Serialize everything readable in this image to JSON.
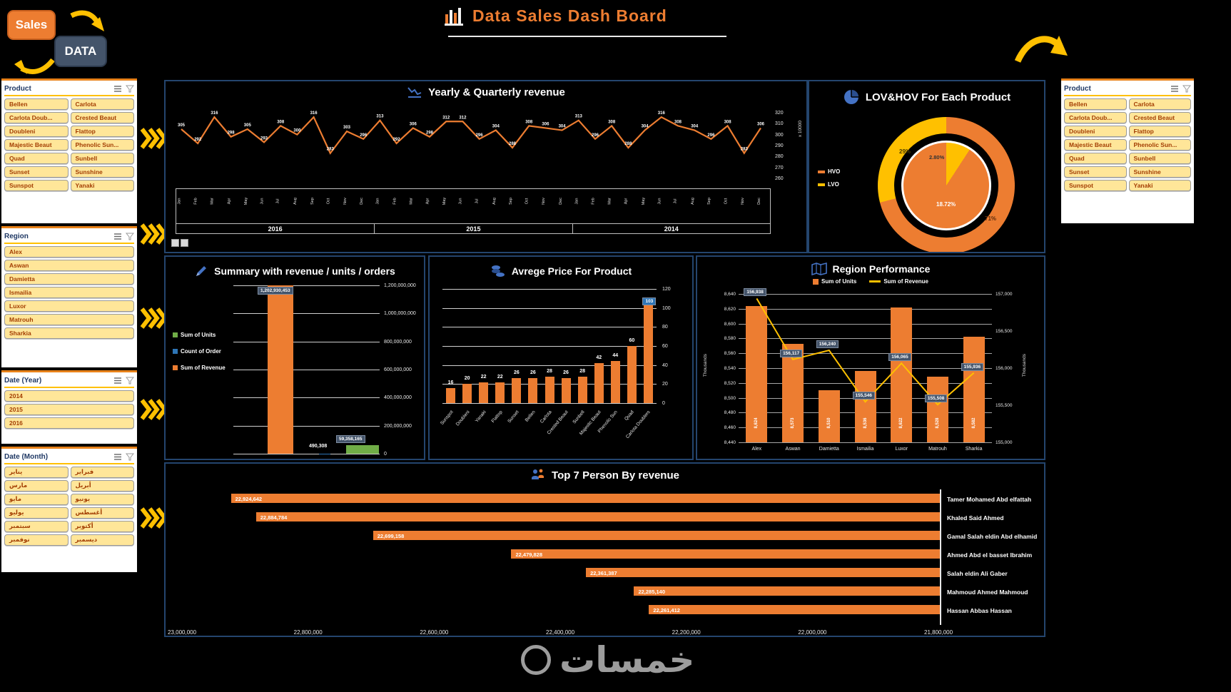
{
  "header": {
    "sales_button": "Sales",
    "data_button": "DATA",
    "title": "Data Sales Dash Board"
  },
  "slicers": {
    "product_left": {
      "title": "Product",
      "items": [
        "Bellen",
        "Carlota",
        "Carlota Doub...",
        "Crested Beaut",
        "Doubleni",
        "Flattop",
        "Majestic Beaut",
        "Phenolic Sun...",
        "Quad",
        "Sunbell",
        "Sunset",
        "Sunshine",
        "Sunspot",
        "Yanaki"
      ]
    },
    "region": {
      "title": "Region",
      "items": [
        "Alex",
        "Aswan",
        "Damietta",
        "Ismailia",
        "Luxor",
        "Matrouh",
        "Sharkia"
      ]
    },
    "date_year": {
      "title": "Date (Year)",
      "items": [
        "2014",
        "2015",
        "2016"
      ]
    },
    "date_month": {
      "title": "Date (Month)",
      "items": [
        "يناير",
        "فبراير",
        "مارس",
        "أبريل",
        "مايو",
        "يونيو",
        "يوليو",
        "أغسطس",
        "سبتمبر",
        "أكتوبر",
        "نوفمبر",
        "ديسمبر"
      ]
    },
    "product_right": {
      "title": "Product",
      "items": [
        "Bellen",
        "Carlota",
        "Carlota Doub...",
        "Crested Beaut",
        "Doubleni",
        "Flattop",
        "Majestic Beaut",
        "Phenolic Sun...",
        "Quad",
        "Sunbell",
        "Sunset",
        "Sunshine",
        "Sunspot",
        "Yanaki"
      ]
    }
  },
  "colors": {
    "accent_orange": "#ED7D31",
    "accent_yellow": "#FFC000",
    "panel_border": "#24456E",
    "label_box": "#44546A",
    "icon_blue": "#4472C4",
    "bar_green": "#70AD47",
    "bar_blue": "#2E75B6",
    "slicer_button_bg": "#FFE699"
  },
  "watermark": {
    "text": "خمسات"
  },
  "chart_data": [
    {
      "id": "yearly",
      "type": "line",
      "title": "Yearly & Quarterly revenue",
      "y_axis_label": "x 10000",
      "y_ticks": [
        "320",
        "310",
        "300",
        "290",
        "280",
        "270",
        "260"
      ],
      "y_min": 260,
      "y_max": 320,
      "months": [
        "Jan",
        "Feb",
        "Mar",
        "Apr",
        "May",
        "Jun",
        "Jul",
        "Aug",
        "Sep",
        "Oct",
        "Nov",
        "Dec"
      ],
      "year_groups": [
        "2016",
        "2015",
        "2014"
      ],
      "values": [
        305,
        292,
        316,
        298,
        305,
        293,
        308,
        300,
        316,
        283,
        303,
        296,
        313,
        292,
        306,
        298,
        312,
        312,
        296,
        304,
        288,
        308,
        306,
        304,
        313,
        296,
        308,
        288,
        304,
        316,
        308,
        304,
        296,
        308,
        283,
        306
      ],
      "line_color": "#ED7D31"
    },
    {
      "id": "lovhov",
      "type": "pie",
      "title": "LOV&HOV For Each Product",
      "legend": [
        {
          "label": "HVO",
          "color": "#ED7D31"
        },
        {
          "label": "LVO",
          "color": "#FFC000"
        }
      ],
      "outer_ring": [
        {
          "name": "HVO",
          "pct": 71,
          "label": "71%",
          "color": "#ED7D31"
        },
        {
          "name": "LVO",
          "pct": 29,
          "label": "29%",
          "color": "#FFC000"
        }
      ],
      "inner_pie": [
        {
          "name": "HVO",
          "pct": 90.8,
          "label": "18.72%",
          "color": "#ED7D31"
        },
        {
          "name": "LVO",
          "pct": 9.2,
          "label": "2.80%",
          "color": "#FFC000"
        }
      ]
    },
    {
      "id": "summary",
      "type": "bar",
      "title": "Summary with revenue / units / orders",
      "legend": [
        {
          "label": "Sum of Units",
          "color": "#70AD47"
        },
        {
          "label": "Count of Order",
          "color": "#2E75B6"
        },
        {
          "label": "Sum of Revenue",
          "color": "#ED7D31"
        }
      ],
      "bars": [
        {
          "name": "Sum of Revenue",
          "value": 1202930453,
          "label": "1,202,930,453",
          "color": "#ED7D31",
          "boxed": true
        },
        {
          "name": "Count of Order",
          "value": 490308,
          "label": "490,308",
          "color": "#2E75B6",
          "boxed": false
        },
        {
          "name": "Sum of Units",
          "value": 59358165,
          "label": "59,358,165",
          "color": "#70AD47",
          "boxed": true
        }
      ],
      "y_ticks": [
        "1,200,000,000",
        "1,000,000,000",
        "800,000,000",
        "600,000,000",
        "400,000,000",
        "200,000,000",
        "0"
      ],
      "y_max": 1200000000
    },
    {
      "id": "avgprice",
      "type": "bar",
      "title": "Avrege Price For Product",
      "categories": [
        "Sunspot",
        "Doubleni",
        "Yanaki",
        "Flattop",
        "Sunset",
        "Bellen",
        "Carlota",
        "Crested Beaut",
        "Sunbell",
        "Majestic Beaut",
        "Phenolic Sun",
        "Quad",
        "Carlota Doublers"
      ],
      "values": [
        16,
        20,
        22,
        22,
        26,
        26,
        28,
        26,
        28,
        42,
        44,
        60,
        103
      ],
      "y_ticks": [
        "120",
        "100",
        "80",
        "60",
        "40",
        "20",
        "0"
      ],
      "y_max": 120,
      "bar_color": "#ED7D31"
    },
    {
      "id": "regionperf",
      "type": "combo",
      "title": "Region Performance",
      "categories": [
        "Alex",
        "Aswan",
        "Damietta",
        "Ismailia",
        "Luxor",
        "Matrouh",
        "Sharkia"
      ],
      "series": [
        {
          "name": "Sum of Units",
          "type": "bar",
          "color": "#ED7D31",
          "values": [
            8624,
            8573,
            8510,
            8536,
            8622,
            8528,
            8582
          ],
          "labels": [
            "8,624",
            "8,573",
            "8,510",
            "8,536",
            "8,622",
            "8,528",
            "8,582"
          ]
        },
        {
          "name": "Sum of Revenue",
          "type": "line",
          "color": "#FFC000",
          "values": [
            156938,
            156117,
            156240,
            155546,
            156065,
            155508,
            155936
          ],
          "labels": [
            "156,938",
            "156,117",
            "156,240",
            "155,546",
            "156,065",
            "155,508",
            "155,936"
          ]
        }
      ],
      "left_axis": {
        "title": "Thousands",
        "min": 8440,
        "max": 8640,
        "ticks": [
          "8,640",
          "8,620",
          "8,600",
          "8,580",
          "8,560",
          "8,540",
          "8,520",
          "8,500",
          "8,480",
          "8,460",
          "8,440"
        ]
      },
      "right_axis": {
        "title": "Thousands",
        "min": 155000,
        "max": 157000,
        "ticks": [
          "157,000",
          "156,500",
          "156,000",
          "155,500",
          "155,000"
        ]
      }
    },
    {
      "id": "top7",
      "type": "bar-horizontal",
      "title": "Top 7 Person By revenue",
      "names": [
        "Tamer Mohamed Abd elfattah",
        "Khaled Said Ahmed",
        "Gamal Salah eldin Abd elhamid",
        "Ahmed Abd el basset Ibrahim",
        "Salah eldin Ali Gaber",
        "Mahmoud Ahmed Mahmoud",
        "Hassan Abbas Hassan"
      ],
      "values": [
        22924642,
        22884784,
        22699158,
        22479828,
        22361387,
        22285140,
        22261412
      ],
      "labels": [
        "22,924,642",
        "22,884,784",
        "22,699,158",
        "22,479,828",
        "22,361,387",
        "22,285,140",
        "22,261,412"
      ],
      "x_ticks": [
        "23,000,000",
        "22,800,000",
        "22,600,000",
        "22,400,000",
        "22,200,000",
        "22,000,000",
        "21,800,000"
      ],
      "x_min": 21800000,
      "x_max": 23000000,
      "bar_color": "#ED7D31"
    }
  ]
}
